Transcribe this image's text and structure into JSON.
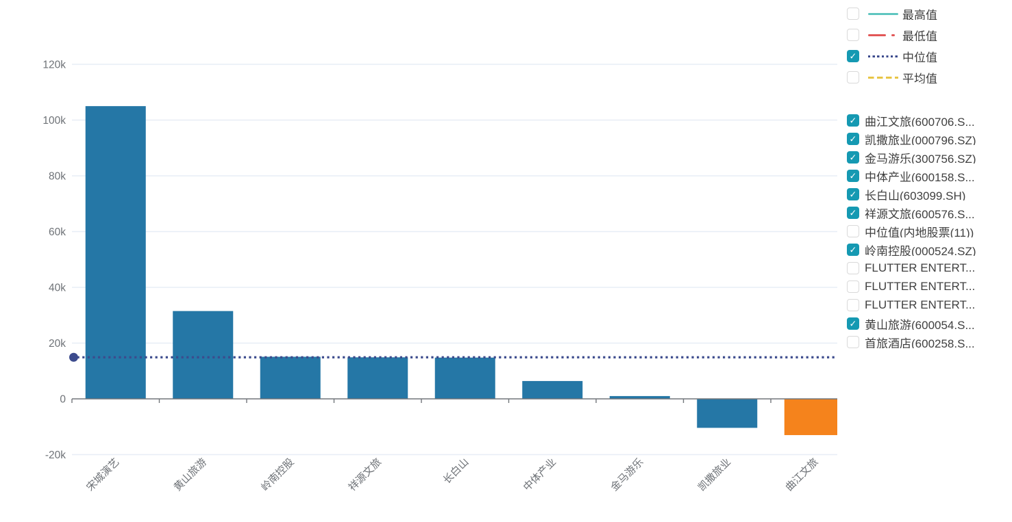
{
  "chart_data": {
    "type": "bar",
    "title": "",
    "xlabel": "",
    "ylabel": "",
    "categories": [
      "宋城演艺",
      "黄山旅游",
      "岭南控股",
      "祥源文旅",
      "长白山",
      "中体产业",
      "金马游乐",
      "凯撒旅业",
      "曲江文旅"
    ],
    "values": [
      105000,
      31500,
      15100,
      14900,
      14800,
      6400,
      1000,
      -10400,
      -13000
    ],
    "bar_colors": [
      "#2577a6",
      "#2577a6",
      "#2577a6",
      "#2577a6",
      "#2577a6",
      "#2577a6",
      "#2577a6",
      "#2577a6",
      "#f5831c"
    ],
    "median_line": {
      "label": "中位值",
      "value": 14900,
      "color": "#3c4b8d",
      "style": "dotted"
    },
    "ylim": [
      -20000,
      120000
    ],
    "y_ticks": [
      {
        "value": -20000,
        "label": "-20k"
      },
      {
        "value": 0,
        "label": "0"
      },
      {
        "value": 20000,
        "label": "20k"
      },
      {
        "value": 40000,
        "label": "40k"
      },
      {
        "value": 60000,
        "label": "60k"
      },
      {
        "value": 80000,
        "label": "80k"
      },
      {
        "value": 100000,
        "label": "100k"
      },
      {
        "value": 120000,
        "label": "120k"
      }
    ],
    "grid": true,
    "legend_position": "right"
  },
  "stat_legend": {
    "items": [
      {
        "label": "最高值",
        "checked": false,
        "line_color": "#5fc6c0",
        "line_style": "solid"
      },
      {
        "label": "最低值",
        "checked": false,
        "line_color": "#e25757",
        "line_style": "dash-dot"
      },
      {
        "label": "中位值",
        "checked": true,
        "line_color": "#3c4b8d",
        "line_style": "dotted"
      },
      {
        "label": "平均值",
        "checked": false,
        "line_color": "#e8c546",
        "line_style": "dashed"
      }
    ]
  },
  "series_legend": {
    "items": [
      {
        "label": "曲江文旅(600706.S...",
        "checked": true
      },
      {
        "label": "凯撒旅业(000796.SZ)",
        "checked": true
      },
      {
        "label": "金马游乐(300756.SZ)",
        "checked": true
      },
      {
        "label": "中体产业(600158.S...",
        "checked": true
      },
      {
        "label": "长白山(603099.SH)",
        "checked": true
      },
      {
        "label": "祥源文旅(600576.S...",
        "checked": true
      },
      {
        "label": "中位值(内地股票(11))",
        "checked": false
      },
      {
        "label": "岭南控股(000524.SZ)",
        "checked": true
      },
      {
        "label": "FLUTTER ENTERT...",
        "checked": false
      },
      {
        "label": "FLUTTER ENTERT...",
        "checked": false
      },
      {
        "label": "FLUTTER ENTERT...",
        "checked": false
      },
      {
        "label": "黄山旅游(600054.S...",
        "checked": true
      },
      {
        "label": "首旅酒店(600258.S...",
        "checked": false
      }
    ]
  },
  "icons": {
    "checkmark": "✓",
    "median_dot": "circle"
  },
  "colors": {
    "checkbox_checked": "#1599b2",
    "checkbox_border": "#d9d9d9",
    "bar_blue": "#2577a6",
    "bar_orange": "#f5831c",
    "grid_line": "#e7edf6",
    "axis_line": "#71757a",
    "axis_text": "#6e7277",
    "legend_text": "#3f3f3f"
  }
}
